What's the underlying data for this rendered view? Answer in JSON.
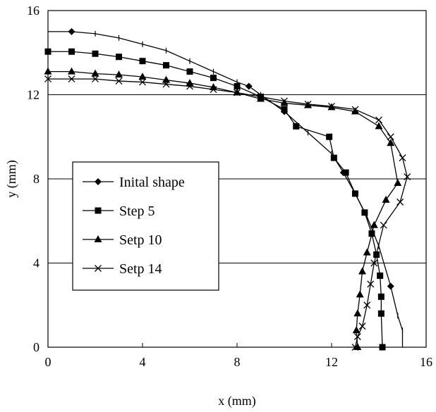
{
  "chart_data": {
    "type": "line",
    "title": "",
    "xlabel": "x (mm)",
    "ylabel": "y (mm)",
    "xlim": [
      0,
      16
    ],
    "ylim": [
      0,
      16
    ],
    "xticks": [
      "0",
      "4",
      "8",
      "12",
      "16"
    ],
    "yticks": [
      "0",
      "4",
      "8",
      "12",
      "16"
    ],
    "grid": {
      "horizontal_lines_at": [
        4,
        8,
        12
      ],
      "vertical": false
    },
    "legend_position": "middle-left",
    "series": [
      {
        "name": "Inital shape",
        "marker": "diamond",
        "x": [
          0,
          1,
          2,
          3,
          4,
          5,
          6,
          7,
          8,
          8.5,
          9,
          10,
          11,
          12,
          12.5,
          13,
          13.5,
          14,
          14.5,
          14.8,
          15,
          15
        ],
        "y": [
          15,
          15,
          14.9,
          14.7,
          14.4,
          14.1,
          13.6,
          13.1,
          12.6,
          12.4,
          12,
          11.2,
          10.2,
          9.2,
          8.3,
          7.3,
          6.2,
          4.8,
          2.9,
          1.5,
          0.8,
          0
        ],
        "marked_points": [
          1,
          8.5,
          10,
          12.5,
          14.5
        ]
      },
      {
        "name": "Step 5",
        "marker": "square",
        "x": [
          0,
          1,
          2,
          3,
          4,
          5,
          6,
          7,
          8,
          9,
          10,
          10.5,
          11.9,
          12.1,
          12.6,
          13,
          13.4,
          13.7,
          13.9,
          14.05,
          14.1,
          14.1,
          14.15
        ],
        "y": [
          14.05,
          14.05,
          13.95,
          13.8,
          13.6,
          13.4,
          13.1,
          12.8,
          12.4,
          11.9,
          11.3,
          10.5,
          10,
          9,
          8.3,
          7.3,
          6.4,
          5.4,
          4.4,
          3.4,
          2.4,
          1.6,
          0
        ],
        "marked_points": "all"
      },
      {
        "name": "Setp 10",
        "marker": "triangle",
        "x": [
          0,
          1,
          2,
          3,
          4,
          5,
          6,
          7,
          8,
          9,
          10,
          11,
          12,
          13,
          14,
          14.5,
          14.8,
          14.3,
          13.8,
          13.5,
          13.3,
          13.2,
          13.1,
          13.05,
          13.1
        ],
        "y": [
          13.1,
          13.1,
          13,
          12.95,
          12.85,
          12.7,
          12.55,
          12.35,
          12.1,
          11.8,
          11.6,
          11.5,
          11.4,
          11.2,
          10.5,
          9.7,
          7.8,
          7,
          5.8,
          4.5,
          3.6,
          2.5,
          1.6,
          0.8,
          0
        ],
        "marked_points": "all"
      },
      {
        "name": "Setp 14",
        "marker": "x",
        "x": [
          0,
          1,
          2,
          3,
          4,
          5,
          6,
          7,
          8,
          9,
          10,
          11,
          12,
          13,
          14,
          14.5,
          15,
          15.2,
          14.9,
          14.2,
          13.8,
          13.65,
          13.5,
          13.3,
          13.1,
          13
        ],
        "y": [
          12.75,
          12.75,
          12.75,
          12.65,
          12.6,
          12.5,
          12.4,
          12.25,
          12.1,
          11.9,
          11.7,
          11.55,
          11.45,
          11.3,
          10.8,
          10,
          9,
          8.1,
          6.9,
          5.8,
          4,
          3,
          2,
          1,
          0.5,
          0
        ],
        "marked_points": "all"
      }
    ]
  }
}
